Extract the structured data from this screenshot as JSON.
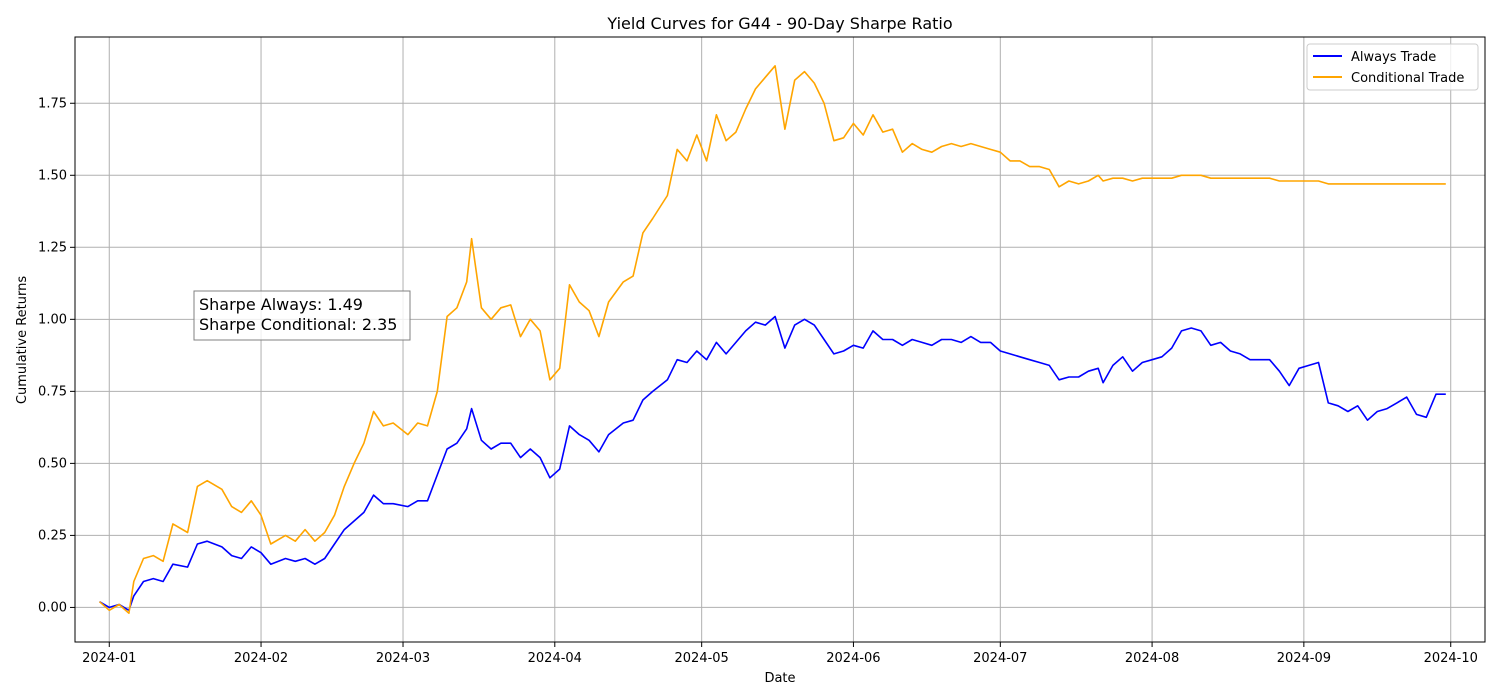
{
  "chart_data": {
    "type": "line",
    "title": "Yield Curves for G44 - 90-Day Sharpe Ratio",
    "xlabel": "Date",
    "ylabel": "Cumulative Returns",
    "xlim": [
      "2023-12-25",
      "2024-10-08"
    ],
    "ylim": [
      -0.12,
      1.98
    ],
    "x_ticks": [
      "2024-01",
      "2024-02",
      "2024-03",
      "2024-04",
      "2024-05",
      "2024-06",
      "2024-07",
      "2024-08",
      "2024-09",
      "2024-10"
    ],
    "y_ticks": [
      "0.00",
      "0.25",
      "0.50",
      "0.75",
      "1.00",
      "1.25",
      "1.50",
      "1.75"
    ],
    "grid": true,
    "legend": "top-right",
    "annotation": {
      "lines": [
        "Sharpe Always: 1.49",
        "Sharpe Conditional: 2.35"
      ],
      "position": "upper-left"
    },
    "series": [
      {
        "name": "Always Trade",
        "color": "#0000ff",
        "points": [
          [
            "2023-12-30",
            0.02
          ],
          [
            "2024-01-01",
            0.0
          ],
          [
            "2024-01-03",
            0.01
          ],
          [
            "2024-01-05",
            -0.01
          ],
          [
            "2024-01-06",
            0.04
          ],
          [
            "2024-01-08",
            0.09
          ],
          [
            "2024-01-10",
            0.1
          ],
          [
            "2024-01-12",
            0.09
          ],
          [
            "2024-01-14",
            0.15
          ],
          [
            "2024-01-17",
            0.14
          ],
          [
            "2024-01-19",
            0.22
          ],
          [
            "2024-01-21",
            0.23
          ],
          [
            "2024-01-24",
            0.21
          ],
          [
            "2024-01-26",
            0.18
          ],
          [
            "2024-01-28",
            0.17
          ],
          [
            "2024-01-30",
            0.21
          ],
          [
            "2024-02-01",
            0.19
          ],
          [
            "2024-02-03",
            0.15
          ],
          [
            "2024-02-06",
            0.17
          ],
          [
            "2024-02-08",
            0.16
          ],
          [
            "2024-02-10",
            0.17
          ],
          [
            "2024-02-12",
            0.15
          ],
          [
            "2024-02-14",
            0.17
          ],
          [
            "2024-02-16",
            0.22
          ],
          [
            "2024-02-18",
            0.27
          ],
          [
            "2024-02-20",
            0.3
          ],
          [
            "2024-02-22",
            0.33
          ],
          [
            "2024-02-24",
            0.39
          ],
          [
            "2024-02-26",
            0.36
          ],
          [
            "2024-02-28",
            0.36
          ],
          [
            "2024-03-02",
            0.35
          ],
          [
            "2024-03-04",
            0.37
          ],
          [
            "2024-03-06",
            0.37
          ],
          [
            "2024-03-08",
            0.46
          ],
          [
            "2024-03-10",
            0.55
          ],
          [
            "2024-03-12",
            0.57
          ],
          [
            "2024-03-14",
            0.62
          ],
          [
            "2024-03-15",
            0.69
          ],
          [
            "2024-03-17",
            0.58
          ],
          [
            "2024-03-19",
            0.55
          ],
          [
            "2024-03-21",
            0.57
          ],
          [
            "2024-03-23",
            0.57
          ],
          [
            "2024-03-25",
            0.52
          ],
          [
            "2024-03-27",
            0.55
          ],
          [
            "2024-03-29",
            0.52
          ],
          [
            "2024-03-31",
            0.45
          ],
          [
            "2024-04-02",
            0.48
          ],
          [
            "2024-04-04",
            0.63
          ],
          [
            "2024-04-06",
            0.6
          ],
          [
            "2024-04-08",
            0.58
          ],
          [
            "2024-04-10",
            0.54
          ],
          [
            "2024-04-12",
            0.6
          ],
          [
            "2024-04-15",
            0.64
          ],
          [
            "2024-04-17",
            0.65
          ],
          [
            "2024-04-19",
            0.72
          ],
          [
            "2024-04-21",
            0.75
          ],
          [
            "2024-04-24",
            0.79
          ],
          [
            "2024-04-26",
            0.86
          ],
          [
            "2024-04-28",
            0.85
          ],
          [
            "2024-04-30",
            0.89
          ],
          [
            "2024-05-02",
            0.86
          ],
          [
            "2024-05-04",
            0.92
          ],
          [
            "2024-05-06",
            0.88
          ],
          [
            "2024-05-08",
            0.92
          ],
          [
            "2024-05-10",
            0.96
          ],
          [
            "2024-05-12",
            0.99
          ],
          [
            "2024-05-14",
            0.98
          ],
          [
            "2024-05-16",
            1.01
          ],
          [
            "2024-05-18",
            0.9
          ],
          [
            "2024-05-20",
            0.98
          ],
          [
            "2024-05-22",
            1.0
          ],
          [
            "2024-05-24",
            0.98
          ],
          [
            "2024-05-26",
            0.93
          ],
          [
            "2024-05-28",
            0.88
          ],
          [
            "2024-05-30",
            0.89
          ],
          [
            "2024-06-01",
            0.91
          ],
          [
            "2024-06-03",
            0.9
          ],
          [
            "2024-06-05",
            0.96
          ],
          [
            "2024-06-07",
            0.93
          ],
          [
            "2024-06-09",
            0.93
          ],
          [
            "2024-06-11",
            0.91
          ],
          [
            "2024-06-13",
            0.93
          ],
          [
            "2024-06-15",
            0.92
          ],
          [
            "2024-06-17",
            0.91
          ],
          [
            "2024-06-19",
            0.93
          ],
          [
            "2024-06-21",
            0.93
          ],
          [
            "2024-06-23",
            0.92
          ],
          [
            "2024-06-25",
            0.94
          ],
          [
            "2024-06-27",
            0.92
          ],
          [
            "2024-06-29",
            0.92
          ],
          [
            "2024-07-01",
            0.89
          ],
          [
            "2024-07-03",
            0.88
          ],
          [
            "2024-07-05",
            0.87
          ],
          [
            "2024-07-07",
            0.86
          ],
          [
            "2024-07-09",
            0.85
          ],
          [
            "2024-07-11",
            0.84
          ],
          [
            "2024-07-13",
            0.79
          ],
          [
            "2024-07-15",
            0.8
          ],
          [
            "2024-07-17",
            0.8
          ],
          [
            "2024-07-19",
            0.82
          ],
          [
            "2024-07-21",
            0.83
          ],
          [
            "2024-07-22",
            0.78
          ],
          [
            "2024-07-24",
            0.84
          ],
          [
            "2024-07-26",
            0.87
          ],
          [
            "2024-07-28",
            0.82
          ],
          [
            "2024-07-30",
            0.85
          ],
          [
            "2024-08-01",
            0.86
          ],
          [
            "2024-08-03",
            0.87
          ],
          [
            "2024-08-05",
            0.9
          ],
          [
            "2024-08-07",
            0.96
          ],
          [
            "2024-08-09",
            0.97
          ],
          [
            "2024-08-11",
            0.96
          ],
          [
            "2024-08-13",
            0.91
          ],
          [
            "2024-08-15",
            0.92
          ],
          [
            "2024-08-17",
            0.89
          ],
          [
            "2024-08-19",
            0.88
          ],
          [
            "2024-08-21",
            0.86
          ],
          [
            "2024-08-23",
            0.86
          ],
          [
            "2024-08-25",
            0.86
          ],
          [
            "2024-08-27",
            0.82
          ],
          [
            "2024-08-29",
            0.77
          ],
          [
            "2024-08-31",
            0.83
          ],
          [
            "2024-09-02",
            0.84
          ],
          [
            "2024-09-04",
            0.85
          ],
          [
            "2024-09-06",
            0.71
          ],
          [
            "2024-09-08",
            0.7
          ],
          [
            "2024-09-10",
            0.68
          ],
          [
            "2024-09-12",
            0.7
          ],
          [
            "2024-09-14",
            0.65
          ],
          [
            "2024-09-16",
            0.68
          ],
          [
            "2024-09-18",
            0.69
          ],
          [
            "2024-09-20",
            0.71
          ],
          [
            "2024-09-22",
            0.73
          ],
          [
            "2024-09-24",
            0.67
          ],
          [
            "2024-09-26",
            0.66
          ],
          [
            "2024-09-28",
            0.74
          ],
          [
            "2024-09-30",
            0.74
          ]
        ]
      },
      {
        "name": "Conditional Trade",
        "color": "#ffa500",
        "points": [
          [
            "2023-12-30",
            0.02
          ],
          [
            "2024-01-01",
            -0.01
          ],
          [
            "2024-01-03",
            0.01
          ],
          [
            "2024-01-05",
            -0.02
          ],
          [
            "2024-01-06",
            0.09
          ],
          [
            "2024-01-08",
            0.17
          ],
          [
            "2024-01-10",
            0.18
          ],
          [
            "2024-01-12",
            0.16
          ],
          [
            "2024-01-14",
            0.29
          ],
          [
            "2024-01-17",
            0.26
          ],
          [
            "2024-01-19",
            0.42
          ],
          [
            "2024-01-21",
            0.44
          ],
          [
            "2024-01-24",
            0.41
          ],
          [
            "2024-01-26",
            0.35
          ],
          [
            "2024-01-28",
            0.33
          ],
          [
            "2024-01-30",
            0.37
          ],
          [
            "2024-02-01",
            0.32
          ],
          [
            "2024-02-03",
            0.22
          ],
          [
            "2024-02-06",
            0.25
          ],
          [
            "2024-02-08",
            0.23
          ],
          [
            "2024-02-10",
            0.27
          ],
          [
            "2024-02-12",
            0.23
          ],
          [
            "2024-02-14",
            0.26
          ],
          [
            "2024-02-16",
            0.32
          ],
          [
            "2024-02-18",
            0.42
          ],
          [
            "2024-02-20",
            0.5
          ],
          [
            "2024-02-22",
            0.57
          ],
          [
            "2024-02-24",
            0.68
          ],
          [
            "2024-02-26",
            0.63
          ],
          [
            "2024-02-28",
            0.64
          ],
          [
            "2024-03-02",
            0.6
          ],
          [
            "2024-03-04",
            0.64
          ],
          [
            "2024-03-06",
            0.63
          ],
          [
            "2024-03-08",
            0.75
          ],
          [
            "2024-03-10",
            1.01
          ],
          [
            "2024-03-12",
            1.04
          ],
          [
            "2024-03-14",
            1.13
          ],
          [
            "2024-03-15",
            1.28
          ],
          [
            "2024-03-17",
            1.04
          ],
          [
            "2024-03-19",
            1.0
          ],
          [
            "2024-03-21",
            1.04
          ],
          [
            "2024-03-23",
            1.05
          ],
          [
            "2024-03-25",
            0.94
          ],
          [
            "2024-03-27",
            1.0
          ],
          [
            "2024-03-29",
            0.96
          ],
          [
            "2024-03-31",
            0.79
          ],
          [
            "2024-04-02",
            0.83
          ],
          [
            "2024-04-04",
            1.12
          ],
          [
            "2024-04-06",
            1.06
          ],
          [
            "2024-04-08",
            1.03
          ],
          [
            "2024-04-10",
            0.94
          ],
          [
            "2024-04-12",
            1.06
          ],
          [
            "2024-04-15",
            1.13
          ],
          [
            "2024-04-17",
            1.15
          ],
          [
            "2024-04-19",
            1.3
          ],
          [
            "2024-04-21",
            1.35
          ],
          [
            "2024-04-24",
            1.43
          ],
          [
            "2024-04-26",
            1.59
          ],
          [
            "2024-04-28",
            1.55
          ],
          [
            "2024-04-30",
            1.64
          ],
          [
            "2024-05-02",
            1.55
          ],
          [
            "2024-05-04",
            1.71
          ],
          [
            "2024-05-06",
            1.62
          ],
          [
            "2024-05-08",
            1.65
          ],
          [
            "2024-05-10",
            1.73
          ],
          [
            "2024-05-12",
            1.8
          ],
          [
            "2024-05-14",
            1.84
          ],
          [
            "2024-05-16",
            1.88
          ],
          [
            "2024-05-18",
            1.66
          ],
          [
            "2024-05-20",
            1.83
          ],
          [
            "2024-05-22",
            1.86
          ],
          [
            "2024-05-24",
            1.82
          ],
          [
            "2024-05-26",
            1.75
          ],
          [
            "2024-05-28",
            1.62
          ],
          [
            "2024-05-30",
            1.63
          ],
          [
            "2024-06-01",
            1.68
          ],
          [
            "2024-06-03",
            1.64
          ],
          [
            "2024-06-05",
            1.71
          ],
          [
            "2024-06-07",
            1.65
          ],
          [
            "2024-06-09",
            1.66
          ],
          [
            "2024-06-11",
            1.58
          ],
          [
            "2024-06-13",
            1.61
          ],
          [
            "2024-06-15",
            1.59
          ],
          [
            "2024-06-17",
            1.58
          ],
          [
            "2024-06-19",
            1.6
          ],
          [
            "2024-06-21",
            1.61
          ],
          [
            "2024-06-23",
            1.6
          ],
          [
            "2024-06-25",
            1.61
          ],
          [
            "2024-06-27",
            1.6
          ],
          [
            "2024-06-29",
            1.59
          ],
          [
            "2024-07-01",
            1.58
          ],
          [
            "2024-07-03",
            1.55
          ],
          [
            "2024-07-05",
            1.55
          ],
          [
            "2024-07-07",
            1.53
          ],
          [
            "2024-07-09",
            1.53
          ],
          [
            "2024-07-11",
            1.52
          ],
          [
            "2024-07-13",
            1.46
          ],
          [
            "2024-07-15",
            1.48
          ],
          [
            "2024-07-17",
            1.47
          ],
          [
            "2024-07-19",
            1.48
          ],
          [
            "2024-07-21",
            1.5
          ],
          [
            "2024-07-22",
            1.48
          ],
          [
            "2024-07-24",
            1.49
          ],
          [
            "2024-07-26",
            1.49
          ],
          [
            "2024-07-28",
            1.48
          ],
          [
            "2024-07-30",
            1.49
          ],
          [
            "2024-08-01",
            1.49
          ],
          [
            "2024-08-03",
            1.49
          ],
          [
            "2024-08-05",
            1.49
          ],
          [
            "2024-08-07",
            1.5
          ],
          [
            "2024-08-09",
            1.5
          ],
          [
            "2024-08-11",
            1.5
          ],
          [
            "2024-08-13",
            1.49
          ],
          [
            "2024-08-15",
            1.49
          ],
          [
            "2024-08-17",
            1.49
          ],
          [
            "2024-08-19",
            1.49
          ],
          [
            "2024-08-21",
            1.49
          ],
          [
            "2024-08-23",
            1.49
          ],
          [
            "2024-08-25",
            1.49
          ],
          [
            "2024-08-27",
            1.48
          ],
          [
            "2024-08-29",
            1.48
          ],
          [
            "2024-08-31",
            1.48
          ],
          [
            "2024-09-02",
            1.48
          ],
          [
            "2024-09-04",
            1.48
          ],
          [
            "2024-09-06",
            1.47
          ],
          [
            "2024-09-08",
            1.47
          ],
          [
            "2024-09-10",
            1.47
          ],
          [
            "2024-09-12",
            1.47
          ],
          [
            "2024-09-14",
            1.47
          ],
          [
            "2024-09-16",
            1.47
          ],
          [
            "2024-09-18",
            1.47
          ],
          [
            "2024-09-20",
            1.47
          ],
          [
            "2024-09-22",
            1.47
          ],
          [
            "2024-09-24",
            1.47
          ],
          [
            "2024-09-26",
            1.47
          ],
          [
            "2024-09-28",
            1.47
          ],
          [
            "2024-09-30",
            1.47
          ]
        ]
      }
    ]
  }
}
